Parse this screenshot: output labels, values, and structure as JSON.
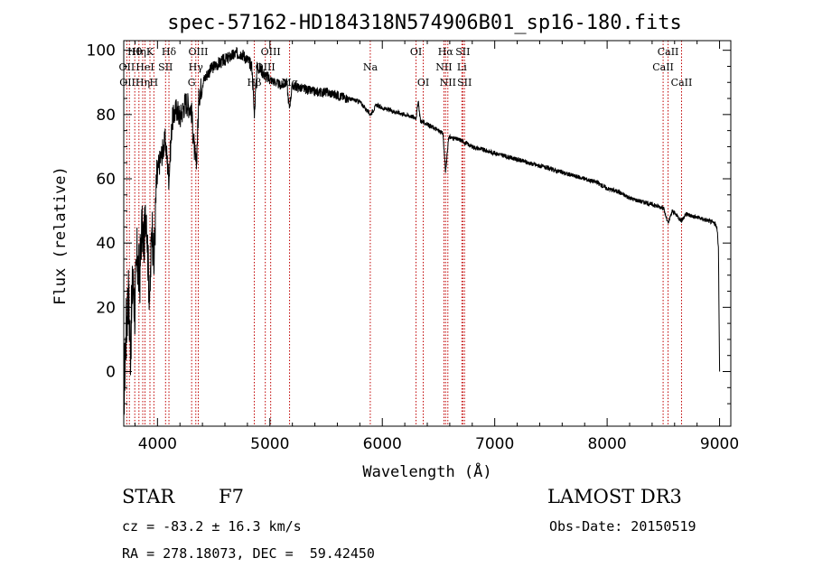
{
  "chart_data": {
    "type": "line",
    "title": "spec-57162-HD184318N574906B01_sp16-180.fits",
    "xlabel": "Wavelength (Å)",
    "ylabel": "Flux (relative)",
    "xlim": [
      3700,
      9100
    ],
    "ylim": [
      -17,
      103
    ],
    "xticks": [
      4000,
      5000,
      6000,
      7000,
      8000,
      9000
    ],
    "yticks": [
      0,
      20,
      40,
      60,
      80,
      100
    ],
    "series": [
      {
        "name": "spectrum",
        "anchors": [
          [
            3700,
            -8
          ],
          [
            3720,
            12
          ],
          [
            3740,
            25
          ],
          [
            3760,
            8
          ],
          [
            3780,
            28
          ],
          [
            3800,
            20
          ],
          [
            3820,
            36
          ],
          [
            3840,
            28
          ],
          [
            3860,
            45
          ],
          [
            3880,
            40
          ],
          [
            3900,
            52
          ],
          [
            3920,
            30
          ],
          [
            3933,
            22
          ],
          [
            3950,
            48
          ],
          [
            3968,
            32
          ],
          [
            3990,
            58
          ],
          [
            4010,
            64
          ],
          [
            4040,
            68
          ],
          [
            4070,
            72
          ],
          [
            4101,
            60
          ],
          [
            4130,
            78
          ],
          [
            4170,
            82
          ],
          [
            4200,
            79
          ],
          [
            4250,
            84
          ],
          [
            4300,
            82
          ],
          [
            4330,
            68
          ],
          [
            4345,
            64
          ],
          [
            4370,
            86
          ],
          [
            4400,
            90
          ],
          [
            4450,
            93
          ],
          [
            4500,
            95
          ],
          [
            4550,
            96
          ],
          [
            4600,
            97
          ],
          [
            4650,
            98
          ],
          [
            4700,
            99
          ],
          [
            4750,
            99
          ],
          [
            4800,
            97
          ],
          [
            4840,
            95
          ],
          [
            4861,
            80
          ],
          [
            4885,
            95
          ],
          [
            4920,
            94
          ],
          [
            4960,
            92
          ],
          [
            5000,
            91
          ],
          [
            5050,
            90
          ],
          [
            5100,
            89
          ],
          [
            5150,
            90
          ],
          [
            5172,
            82
          ],
          [
            5200,
            89
          ],
          [
            5300,
            88
          ],
          [
            5400,
            87
          ],
          [
            5500,
            87
          ],
          [
            5600,
            86
          ],
          [
            5700,
            85
          ],
          [
            5800,
            84
          ],
          [
            5893,
            80
          ],
          [
            5950,
            83
          ],
          [
            6000,
            82
          ],
          [
            6100,
            81
          ],
          [
            6200,
            80
          ],
          [
            6300,
            79
          ],
          [
            6320,
            84
          ],
          [
            6340,
            78
          ],
          [
            6400,
            77
          ],
          [
            6500,
            75
          ],
          [
            6540,
            74
          ],
          [
            6563,
            62
          ],
          [
            6590,
            73
          ],
          [
            6700,
            72
          ],
          [
            6800,
            70
          ],
          [
            6900,
            69
          ],
          [
            7000,
            68
          ],
          [
            7100,
            67
          ],
          [
            7200,
            66
          ],
          [
            7300,
            65
          ],
          [
            7400,
            64
          ],
          [
            7500,
            63
          ],
          [
            7600,
            62
          ],
          [
            7700,
            61
          ],
          [
            7800,
            60
          ],
          [
            7900,
            59
          ],
          [
            8000,
            57
          ],
          [
            8100,
            56
          ],
          [
            8200,
            54
          ],
          [
            8300,
            53
          ],
          [
            8400,
            52
          ],
          [
            8500,
            51
          ],
          [
            8542,
            46
          ],
          [
            8580,
            50
          ],
          [
            8662,
            47
          ],
          [
            8700,
            49
          ],
          [
            8800,
            48
          ],
          [
            8900,
            47
          ],
          [
            8960,
            46
          ],
          [
            8980,
            44
          ],
          [
            8990,
            38
          ],
          [
            9000,
            0
          ]
        ]
      }
    ],
    "line_markers": [
      {
        "wl": 3727,
        "row": 1,
        "label": "OII"
      },
      {
        "wl": 3750,
        "row": 2,
        "label": "OIII"
      },
      {
        "wl": 3798,
        "row": 0,
        "label": "Hθ"
      },
      {
        "wl": 3835,
        "row": 0,
        "label": "Hη"
      },
      {
        "wl": 3869,
        "row": 2,
        "label": "Hη"
      },
      {
        "wl": 3889,
        "row": 1,
        "label": "HeI"
      },
      {
        "wl": 3933,
        "row": 0,
        "label": "K"
      },
      {
        "wl": 3968,
        "row": 2,
        "label": "H"
      },
      {
        "wl": 4072,
        "row": 1,
        "label": "SII"
      },
      {
        "wl": 4102,
        "row": 0,
        "label": "Hδ"
      },
      {
        "wl": 4304,
        "row": 2,
        "label": "G"
      },
      {
        "wl": 4341,
        "row": 1,
        "label": "Hγ"
      },
      {
        "wl": 4363,
        "row": 0,
        "label": "OIII"
      },
      {
        "wl": 4861,
        "row": 2,
        "label": "Hβ"
      },
      {
        "wl": 4959,
        "row": 1,
        "label": "OIII"
      },
      {
        "wl": 5007,
        "row": 0,
        "label": "OIII"
      },
      {
        "wl": 5175,
        "row": 2,
        "label": "Mg"
      },
      {
        "wl": 5893,
        "row": 1,
        "label": "Na"
      },
      {
        "wl": 6300,
        "row": 0,
        "label": "OI"
      },
      {
        "wl": 6364,
        "row": 2,
        "label": "OI"
      },
      {
        "wl": 6548,
        "row": 1,
        "label": "NII"
      },
      {
        "wl": 6563,
        "row": 0,
        "label": "Hα"
      },
      {
        "wl": 6583,
        "row": 2,
        "label": "NII"
      },
      {
        "wl": 6708,
        "row": 1,
        "label": "Li"
      },
      {
        "wl": 6716,
        "row": 0,
        "label": "SII"
      },
      {
        "wl": 6731,
        "row": 2,
        "label": "SII"
      },
      {
        "wl": 8498,
        "row": 1,
        "label": "CaII"
      },
      {
        "wl": 8542,
        "row": 0,
        "label": "CaII"
      },
      {
        "wl": 8662,
        "row": 2,
        "label": "CaII"
      }
    ]
  },
  "info": {
    "object_class": "STAR",
    "subclass": "F7",
    "survey": "LAMOST DR3",
    "cz": "cz = -83.2 ± 16.3 km/s",
    "obs_date": "Obs-Date: 20150519",
    "coords": "RA = 278.18073, DEC =  59.42450"
  },
  "colors": {
    "marker": "#c00000",
    "spectrum": "#000000"
  }
}
